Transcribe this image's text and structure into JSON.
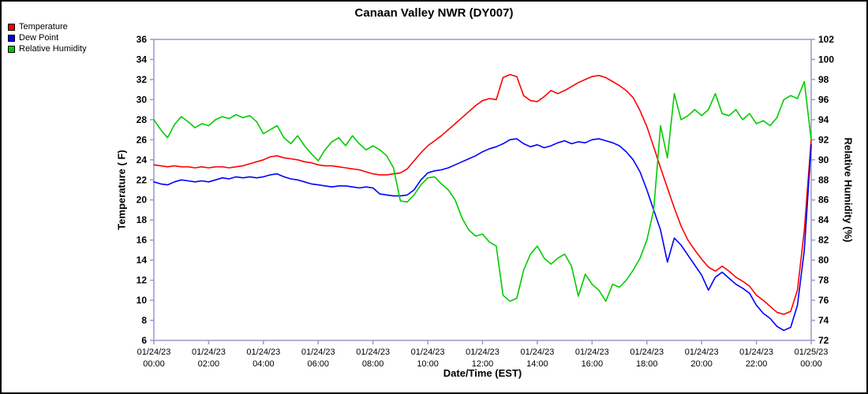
{
  "chart_data": {
    "type": "line",
    "title": "Canaan Valley NWR (DY007)",
    "xlabel": "Date/Time (EST)",
    "ylabel_left": "Temperature ( F)",
    "ylabel_right": "Relative Humidity (%)",
    "xlim": [
      0,
      24
    ],
    "ylim_left": [
      6,
      36
    ],
    "ylim_right": [
      72,
      102
    ],
    "ytick_step": 2,
    "grid": false,
    "legend_position": "top-left",
    "colors": {
      "frame": "#9999cc",
      "text": "#000000"
    },
    "x_start_hour": 0,
    "x_interval_hours": 0.25,
    "x_ticks": [
      {
        "hour": 0,
        "date": "01/24/23",
        "time": "00:00"
      },
      {
        "hour": 2,
        "date": "01/24/23",
        "time": "02:00"
      },
      {
        "hour": 4,
        "date": "01/24/23",
        "time": "04:00"
      },
      {
        "hour": 6,
        "date": "01/24/23",
        "time": "06:00"
      },
      {
        "hour": 8,
        "date": "01/24/23",
        "time": "08:00"
      },
      {
        "hour": 10,
        "date": "01/24/23",
        "time": "10:00"
      },
      {
        "hour": 12,
        "date": "01/24/23",
        "time": "12:00"
      },
      {
        "hour": 14,
        "date": "01/24/23",
        "time": "14:00"
      },
      {
        "hour": 16,
        "date": "01/24/23",
        "time": "16:00"
      },
      {
        "hour": 18,
        "date": "01/24/23",
        "time": "18:00"
      },
      {
        "hour": 20,
        "date": "01/24/23",
        "time": "20:00"
      },
      {
        "hour": 22,
        "date": "01/24/23",
        "time": "22:00"
      },
      {
        "hour": 24,
        "date": "01/25/23",
        "time": "00:00"
      }
    ],
    "series": [
      {
        "name": "Temperature",
        "color": "#ff0000",
        "axis": "left",
        "values": [
          23.5,
          23.4,
          23.3,
          23.4,
          23.3,
          23.3,
          23.2,
          23.3,
          23.2,
          23.3,
          23.3,
          23.2,
          23.3,
          23.4,
          23.6,
          23.8,
          24.0,
          24.3,
          24.4,
          24.2,
          24.1,
          24.0,
          23.8,
          23.7,
          23.5,
          23.4,
          23.4,
          23.3,
          23.2,
          23.1,
          23.0,
          22.8,
          22.6,
          22.5,
          22.5,
          22.6,
          22.7,
          23.1,
          23.9,
          24.7,
          25.4,
          25.9,
          26.4,
          27.0,
          27.6,
          28.2,
          28.8,
          29.4,
          29.9,
          30.1,
          30.0,
          32.2,
          32.5,
          32.3,
          30.4,
          29.9,
          29.8,
          30.3,
          30.9,
          30.6,
          30.9,
          31.3,
          31.7,
          32.0,
          32.3,
          32.4,
          32.2,
          31.8,
          31.4,
          30.9,
          30.2,
          28.9,
          27.3,
          25.3,
          23.2,
          21.2,
          19.2,
          17.4,
          16.0,
          15.0,
          14.1,
          13.3,
          12.9,
          13.4,
          12.9,
          12.3,
          11.9,
          11.4,
          10.5,
          10.0,
          9.4,
          8.8,
          8.6,
          8.9,
          11.0,
          17.0,
          26.0
        ]
      },
      {
        "name": "Dew Point",
        "color": "#0000ff",
        "axis": "left",
        "values": [
          21.8,
          21.6,
          21.5,
          21.8,
          22.0,
          21.9,
          21.8,
          21.9,
          21.8,
          22.0,
          22.2,
          22.1,
          22.3,
          22.2,
          22.3,
          22.2,
          22.3,
          22.5,
          22.6,
          22.3,
          22.1,
          22.0,
          21.8,
          21.6,
          21.5,
          21.4,
          21.3,
          21.4,
          21.4,
          21.3,
          21.2,
          21.3,
          21.2,
          20.6,
          20.5,
          20.4,
          20.4,
          20.5,
          21.0,
          22.0,
          22.7,
          22.9,
          23.0,
          23.2,
          23.5,
          23.8,
          24.1,
          24.4,
          24.8,
          25.1,
          25.3,
          25.6,
          26.0,
          26.1,
          25.6,
          25.3,
          25.5,
          25.2,
          25.4,
          25.7,
          25.9,
          25.6,
          25.8,
          25.7,
          26.0,
          26.1,
          25.9,
          25.7,
          25.4,
          24.8,
          24.0,
          22.8,
          21.0,
          19.0,
          17.0,
          13.8,
          16.2,
          15.5,
          14.5,
          13.5,
          12.5,
          11.0,
          12.3,
          12.8,
          12.2,
          11.6,
          11.2,
          10.7,
          9.5,
          8.7,
          8.2,
          7.4,
          7.0,
          7.3,
          9.5,
          15.0,
          25.5
        ]
      },
      {
        "name": "Relative Humidity",
        "color": "#00cc00",
        "axis": "right",
        "values": [
          94.0,
          93.0,
          92.2,
          93.5,
          94.3,
          93.8,
          93.2,
          93.6,
          93.4,
          94.0,
          94.3,
          94.1,
          94.5,
          94.2,
          94.4,
          93.8,
          92.6,
          93.0,
          93.4,
          92.2,
          91.6,
          92.4,
          91.4,
          90.6,
          89.9,
          91.0,
          91.8,
          92.2,
          91.4,
          92.4,
          91.6,
          91.0,
          91.4,
          91.0,
          90.4,
          89.2,
          85.9,
          85.8,
          86.5,
          87.5,
          88.2,
          88.3,
          87.6,
          87.0,
          86.0,
          84.2,
          83.0,
          82.4,
          82.6,
          81.8,
          81.4,
          76.5,
          75.9,
          76.2,
          79.0,
          80.6,
          81.4,
          80.2,
          79.6,
          80.2,
          80.6,
          79.4,
          76.4,
          78.6,
          77.6,
          77.0,
          75.9,
          77.6,
          77.3,
          78.0,
          79.0,
          80.2,
          82.0,
          85.0,
          93.4,
          90.2,
          96.6,
          94.0,
          94.4,
          95.0,
          94.4,
          95.0,
          96.6,
          94.6,
          94.4,
          95.0,
          94.0,
          94.6,
          93.6,
          93.9,
          93.4,
          94.2,
          96.0,
          96.4,
          96.1,
          97.8,
          92.0
        ]
      }
    ]
  }
}
